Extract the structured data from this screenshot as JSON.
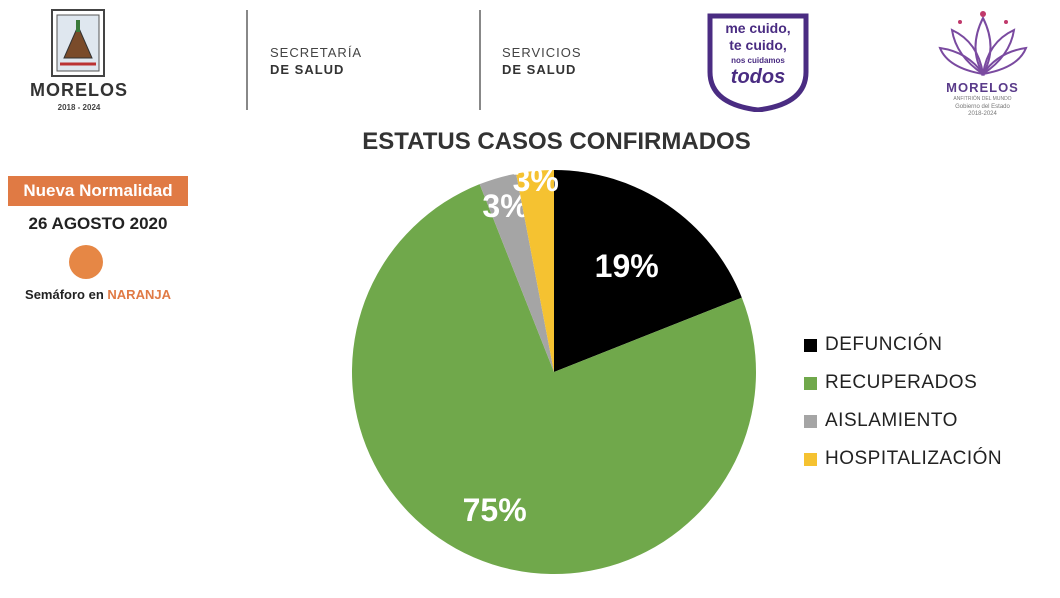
{
  "header": {
    "state_name": "MORELOS",
    "state_years": "2018 - 2024",
    "secretaria_line1": "SECRETARÍA",
    "secretaria_line2": "DE SALUD",
    "servicios_line1": "SERVICIOS",
    "servicios_line2": "DE SALUD",
    "campaign": {
      "line1": "me cuido,",
      "line2": "te cuido,",
      "line3": "nos cuidamos",
      "line4": "todos"
    },
    "gov_logo": {
      "name": "MORELOS",
      "tagline": "ANFITRIÓN DEL MUNDO",
      "line2": "Gobierno del Estado",
      "line3": "2018-2024"
    }
  },
  "status": {
    "badge": "Nueva Normalidad",
    "date": "26 AGOSTO 2020",
    "semaforo_prefix": "Semáforo en",
    "semaforo_color_word": "NARANJA",
    "semaforo_color": "#e68745"
  },
  "colors": {
    "accent_orange": "#e07a44",
    "purple": "#4a2c82"
  },
  "chart_data": {
    "type": "pie",
    "title": "ESTATUS CASOS CONFIRMADOS",
    "start": "12 o'clock, clockwise",
    "legend_position": "right",
    "slices": [
      {
        "label": "DEFUNCIÓN",
        "value": 19,
        "display": "19%",
        "color": "#000000",
        "label_color": "#ffffff"
      },
      {
        "label": "RECUPERADOS",
        "value": 75,
        "display": "75%",
        "color": "#70a84b",
        "label_color": "#ffffff"
      },
      {
        "label": "AISLAMIENTO",
        "value": 3,
        "display": "3%",
        "color": "#a5a5a5",
        "label_color": "#ffffff"
      },
      {
        "label": "HOSPITALIZACIÓN",
        "value": 3,
        "display": "3%",
        "color": "#f5c231",
        "label_color": "#ffffff"
      }
    ]
  }
}
